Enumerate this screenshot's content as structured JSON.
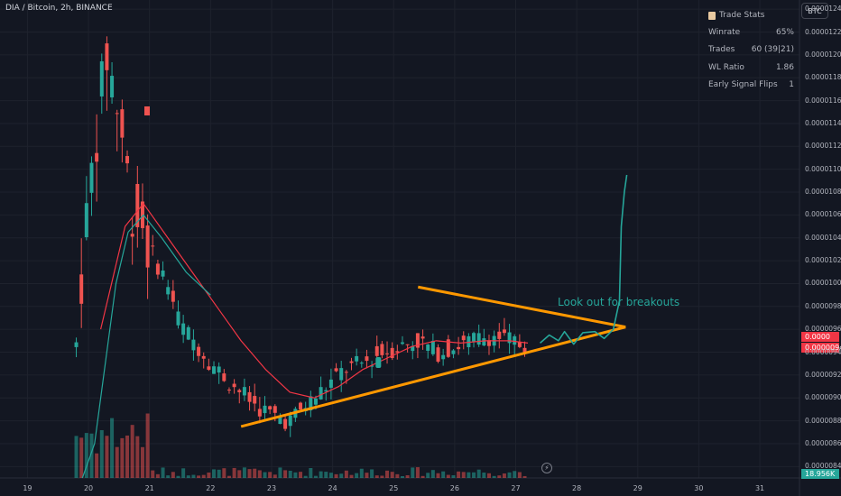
{
  "header": {
    "symbol": "DIA / Bitcoin, 2h, BINANCE"
  },
  "currency_button": "BTC",
  "trade_stats": {
    "title": "Trade Stats",
    "rows": [
      {
        "label": "Winrate",
        "value": "65%"
      },
      {
        "label": "Trades",
        "value": "60 (39|21)"
      },
      {
        "label": "WL Ratio",
        "value": "1.86"
      },
      {
        "label": "Early Signal Flips",
        "value": "1"
      }
    ]
  },
  "annotation": "Look out for breakouts",
  "price_tags": [
    {
      "text": "0.0000",
      "color": "#f23645"
    },
    {
      "text": "0.00000944",
      "color": "#f23645"
    },
    {
      "text": "18.956K",
      "color": "#26a69a"
    }
  ],
  "icon": "lightning-icon",
  "chart_data": {
    "type": "candlestick",
    "y_ticks": [
      "0.00001240",
      "0.00001220",
      "0.00001200",
      "0.00001180",
      "0.00001160",
      "0.00001140",
      "0.00001120",
      "0.00001100",
      "0.00001080",
      "0.00001060",
      "0.00001040",
      "0.00001020",
      "0.00001000",
      "0.00000980",
      "0.00000960",
      "0.00000940",
      "0.00000920",
      "0.00000900",
      "0.00000880",
      "0.00000860",
      "0.00000840"
    ],
    "x_ticks": [
      "19",
      "20",
      "21",
      "22",
      "23",
      "24",
      "25",
      "26",
      "27",
      "28",
      "29",
      "30",
      "31"
    ],
    "ylim": [
      8.3e-06,
      1.248e-05
    ],
    "xlim": [
      18.55,
      31.65
    ],
    "colors": {
      "up": "#26a69a",
      "down": "#ef5350",
      "ma": "#f23645",
      "triangle": "#ff9800",
      "projection": "#26a69a"
    },
    "approx_price_path": [
      [
        19.8,
        9.45e-06
      ],
      [
        19.9,
        1.02e-05
      ],
      [
        20.1,
        1.12e-05
      ],
      [
        20.3,
        1.2e-05
      ],
      [
        20.5,
        1.15e-05
      ],
      [
        20.7,
        1.07e-05
      ],
      [
        20.9,
        1.05e-05
      ],
      [
        21.0,
        1.03e-05
      ],
      [
        21.3,
        1e-05
      ],
      [
        21.5,
        9.65e-06
      ],
      [
        21.8,
        9.45e-06
      ],
      [
        22.1,
        9.25e-06
      ],
      [
        22.4,
        9.1e-06
      ],
      [
        22.7,
        8.95e-06
      ],
      [
        23.0,
        8.85e-06
      ],
      [
        23.3,
        8.8e-06
      ],
      [
        23.6,
        8.95e-06
      ],
      [
        23.9,
        9.1e-06
      ],
      [
        24.2,
        9.25e-06
      ],
      [
        24.5,
        9.3e-06
      ],
      [
        24.8,
        9.4e-06
      ],
      [
        25.1,
        9.45e-06
      ],
      [
        25.4,
        9.5e-06
      ],
      [
        25.7,
        9.4e-06
      ],
      [
        26.0,
        9.45e-06
      ],
      [
        26.3,
        9.5e-06
      ],
      [
        26.6,
        9.55e-06
      ],
      [
        26.9,
        9.5e-06
      ],
      [
        27.2,
        9.45e-06
      ]
    ],
    "ma_path": [
      [
        20.2,
        9.6e-06
      ],
      [
        20.6,
        1.05e-05
      ],
      [
        20.9,
        1.07e-05
      ],
      [
        21.3,
        1.04e-05
      ],
      [
        21.7,
        1.01e-05
      ],
      [
        22.1,
        9.8e-06
      ],
      [
        22.5,
        9.5e-06
      ],
      [
        22.9,
        9.25e-06
      ],
      [
        23.3,
        9.05e-06
      ],
      [
        23.7,
        9e-06
      ],
      [
        24.1,
        9.1e-06
      ],
      [
        24.5,
        9.25e-06
      ],
      [
        24.9,
        9.35e-06
      ],
      [
        25.3,
        9.45e-06
      ],
      [
        25.7,
        9.5e-06
      ],
      [
        26.1,
        9.48e-06
      ],
      [
        26.5,
        9.5e-06
      ],
      [
        26.9,
        9.5e-06
      ],
      [
        27.2,
        9.48e-06
      ]
    ],
    "teal_ma_path": [
      [
        19.9,
        8.3e-06
      ],
      [
        20.1,
        8.6e-06
      ],
      [
        20.25,
        9.2e-06
      ],
      [
        20.45,
        1e-05
      ],
      [
        20.65,
        1.045e-05
      ],
      [
        20.9,
        1.06e-05
      ],
      [
        21.2,
        1.04e-05
      ],
      [
        21.6,
        1.01e-05
      ],
      [
        22.0,
        9.9e-06
      ]
    ],
    "triangle": {
      "upper": [
        [
          25.4,
          9.97e-06
        ],
        [
          28.8,
          9.62e-06
        ]
      ],
      "lower": [
        [
          22.5,
          8.75e-06
        ],
        [
          28.8,
          9.62e-06
        ]
      ],
      "left_top": [
        25.4,
        9.97e-06
      ]
    },
    "projection_path": [
      [
        27.4,
        9.48e-06
      ],
      [
        27.55,
        9.55e-06
      ],
      [
        27.7,
        9.5e-06
      ],
      [
        27.8,
        9.58e-06
      ],
      [
        27.95,
        9.47e-06
      ],
      [
        28.1,
        9.57e-06
      ],
      [
        28.3,
        9.58e-06
      ],
      [
        28.45,
        9.52e-06
      ],
      [
        28.6,
        9.6e-06
      ],
      [
        28.7,
        9.85e-06
      ],
      [
        28.73,
        1.05e-05
      ],
      [
        28.78,
        1.08e-05
      ],
      [
        28.82,
        1.095e-05
      ]
    ]
  }
}
